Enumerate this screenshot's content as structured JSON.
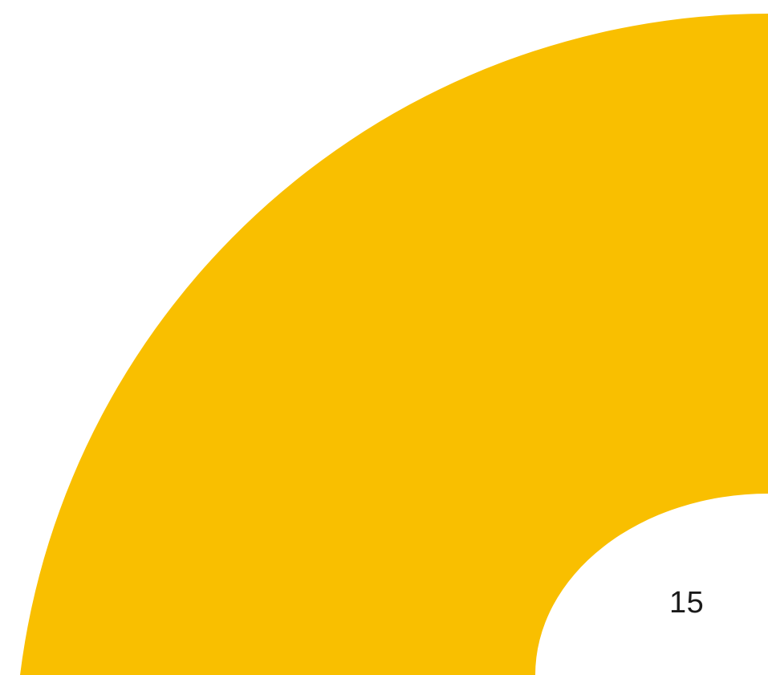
{
  "slide": {
    "page_number": "15",
    "accent_color": "#F9BF00",
    "background_color": "#FFFFFF",
    "shape": "quarter-ring-arc"
  }
}
